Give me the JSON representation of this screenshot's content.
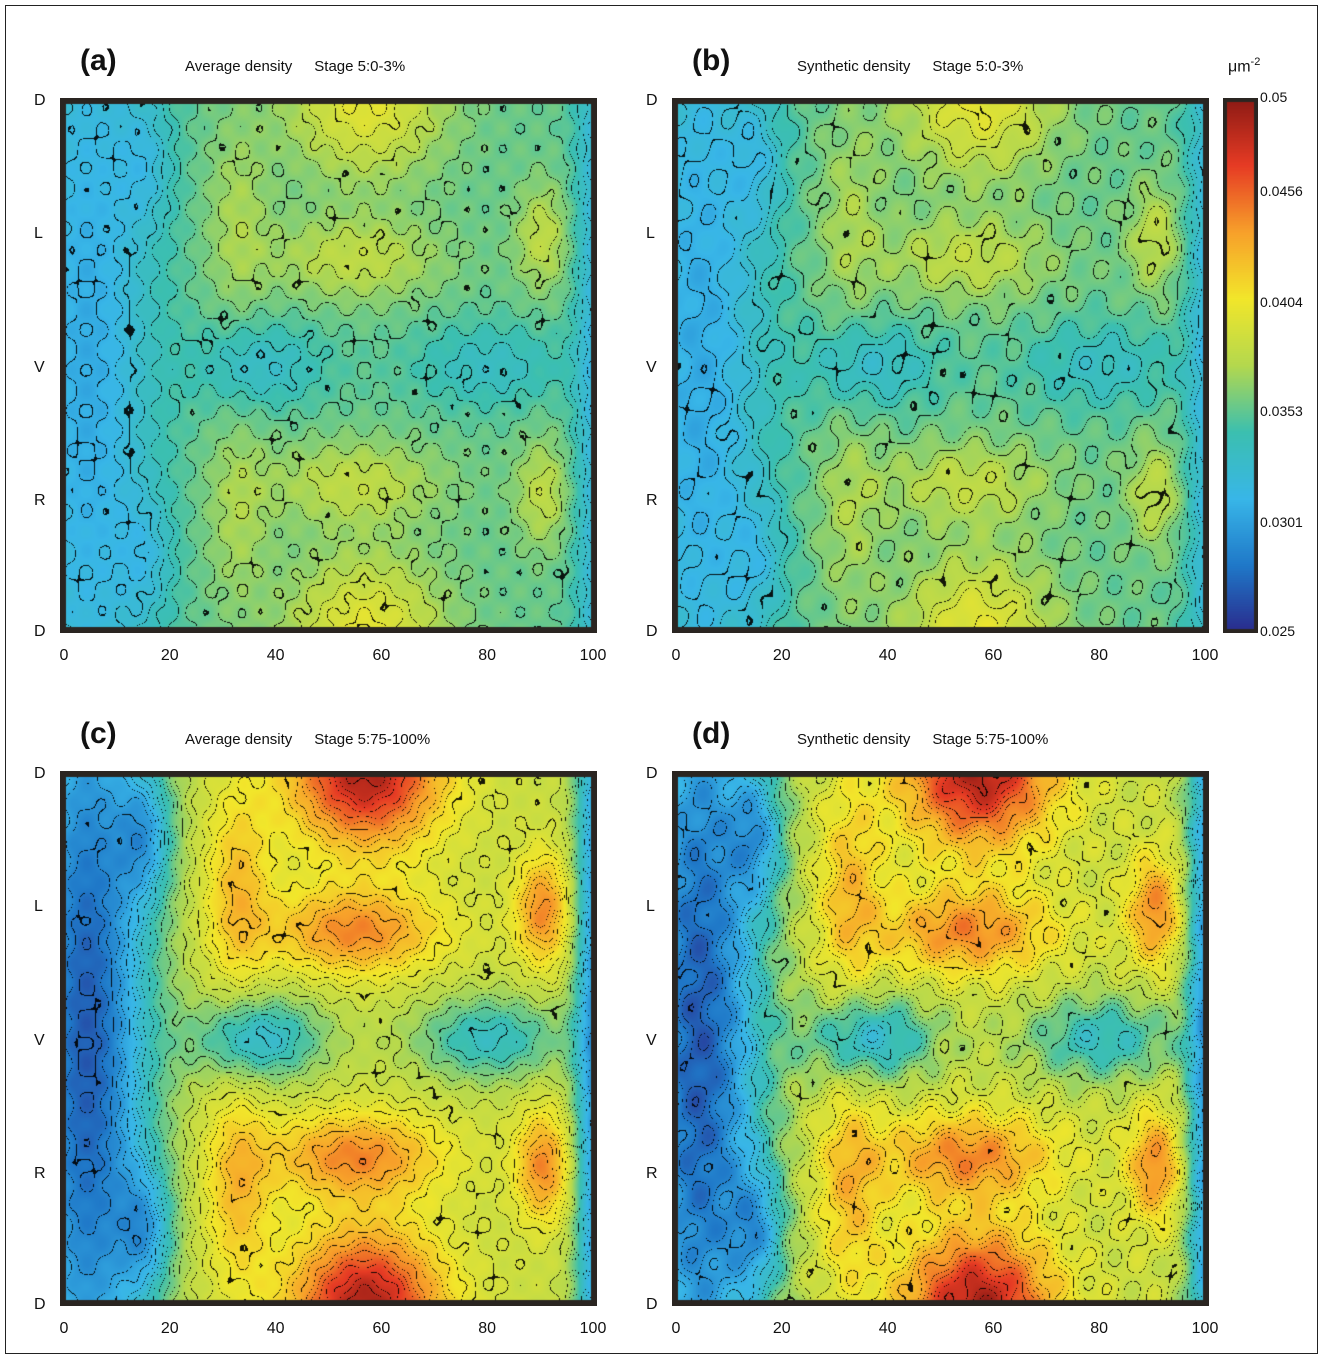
{
  "panels": [
    {
      "label": "(a)",
      "title": "Average density",
      "stage": "Stage 5:0-3%",
      "kind": "average",
      "phase": "early"
    },
    {
      "label": "(b)",
      "title": "Synthetic density",
      "stage": "Stage 5:0-3%",
      "kind": "synthetic",
      "phase": "early"
    },
    {
      "label": "(c)",
      "title": "Average density",
      "stage": "Stage 5:75-100%",
      "kind": "average",
      "phase": "late"
    },
    {
      "label": "(d)",
      "title": "Synthetic density",
      "stage": "Stage 5:75-100%",
      "kind": "synthetic",
      "phase": "late"
    }
  ],
  "y_tick_labels": [
    "D",
    "L",
    "V",
    "R",
    "D"
  ],
  "x_tick_labels": [
    "0",
    "20",
    "40",
    "60",
    "80",
    "100"
  ],
  "colorbar": {
    "unit_base": "μm",
    "unit_exp": "-2",
    "ticks": [
      "0.05",
      "0.0456",
      "0.0404",
      "0.0353",
      "0.0301",
      "0.025"
    ],
    "range": [
      0.025,
      0.05
    ],
    "colors": [
      "#2a2a8c",
      "#1f78c8",
      "#38b6e8",
      "#3bbfb0",
      "#b4d84e",
      "#f2e62a",
      "#f7a02a",
      "#e63b24",
      "#8c1a14"
    ]
  },
  "chart_data": {
    "type": "heatmap",
    "xlim": [
      0,
      100
    ],
    "x_ticks": [
      0,
      20,
      40,
      60,
      80,
      100
    ],
    "y_ticks": [
      "D",
      "L",
      "V",
      "R",
      "D"
    ],
    "value_range": [
      0.025,
      0.05
    ],
    "series": [
      {
        "name": "Average density Stage 5:0-3%",
        "min_approx": 0.031,
        "max_approx": 0.041
      },
      {
        "name": "Synthetic density Stage 5:0-3%",
        "min_approx": 0.031,
        "max_approx": 0.041
      },
      {
        "name": "Average density Stage 5:75-100%",
        "min_approx": 0.026,
        "max_approx": 0.049
      },
      {
        "name": "Synthetic density Stage 5:75-100%",
        "min_approx": 0.027,
        "max_approx": 0.048
      }
    ]
  }
}
